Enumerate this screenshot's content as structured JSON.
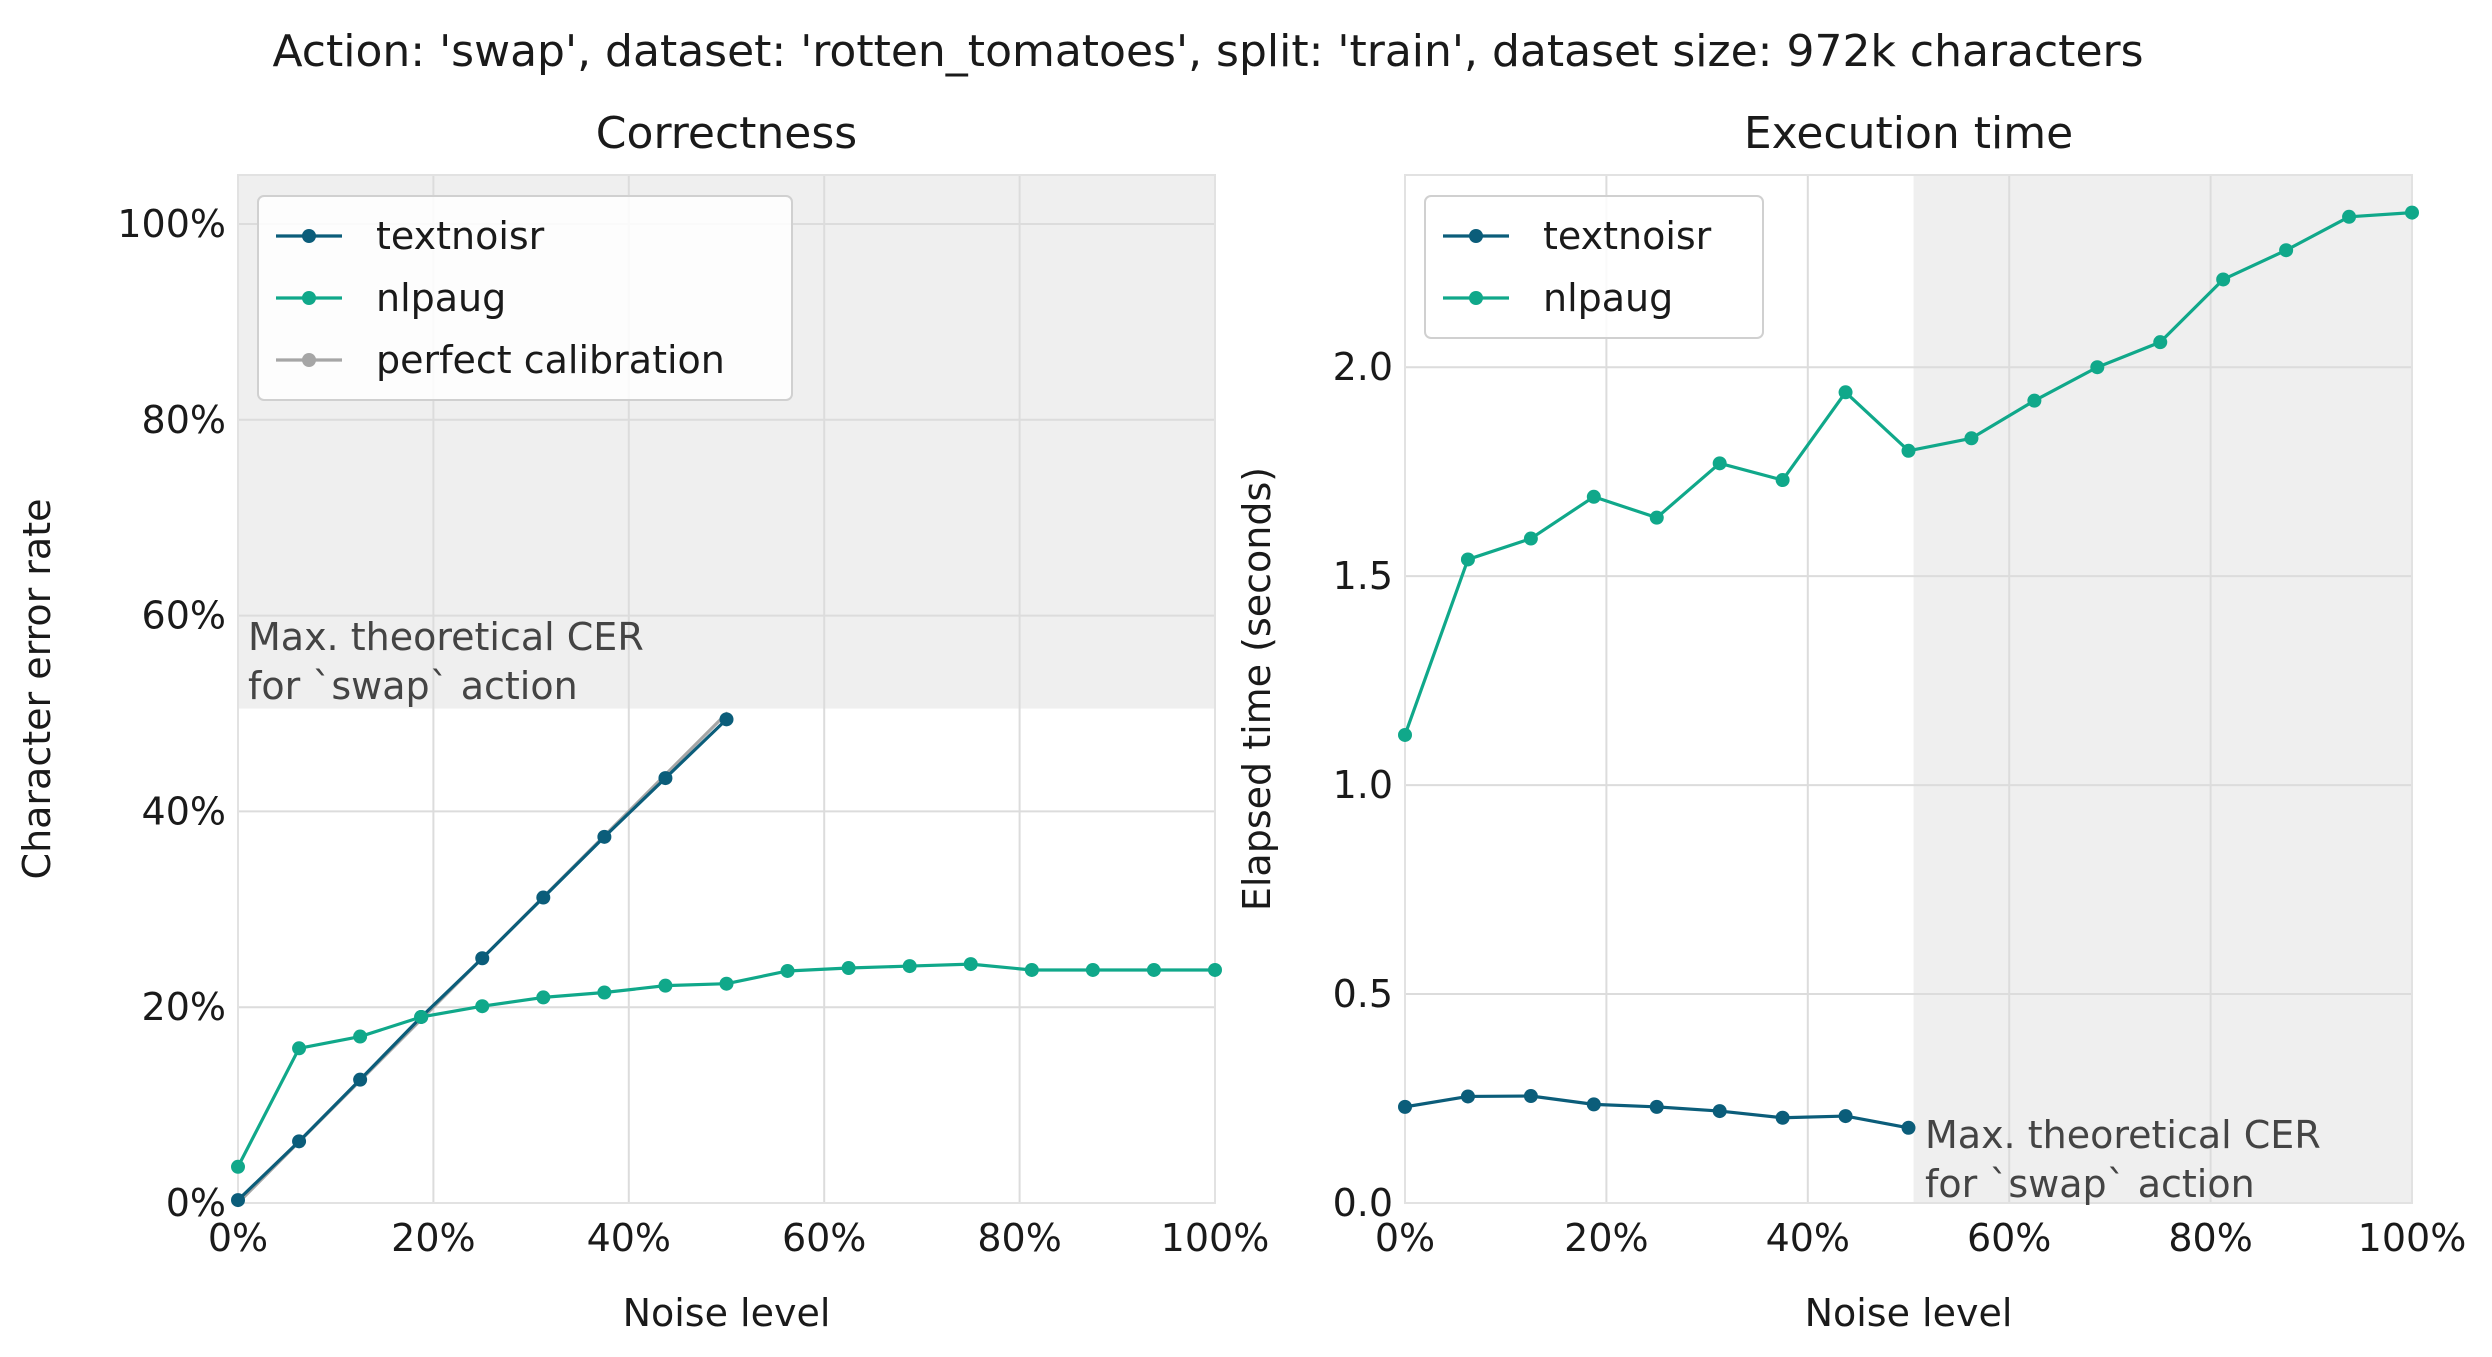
{
  "suptitle": "Action: 'swap', dataset: 'rotten_tomatoes', split: 'train', dataset size: 972k characters",
  "colors": {
    "textnoisr": "#0b5d7a",
    "nlpaug": "#10a88a",
    "perfect_calibration": "#a6a6a6",
    "shade": "#efefef",
    "grid": "#dcdcdc",
    "spine": "#e2e2e2"
  },
  "chart_data": [
    {
      "type": "line",
      "title": "Correctness",
      "xlabel": "Noise level",
      "ylabel": "Character error rate",
      "xlim": [
        0,
        1
      ],
      "ylim": [
        0,
        1.05
      ],
      "xticks": [
        0,
        0.2,
        0.4,
        0.6,
        0.8,
        1.0
      ],
      "xtick_labels": [
        "0%",
        "20%",
        "40%",
        "60%",
        "80%",
        "100%"
      ],
      "yticks": [
        0,
        0.2,
        0.4,
        0.6,
        0.8,
        1.0
      ],
      "ytick_labels": [
        "0%",
        "20%",
        "40%",
        "60%",
        "80%",
        "100%"
      ],
      "grid": true,
      "legend_position": "top-left",
      "shaded_region": {
        "axis": "y",
        "from": 0.505,
        "to": 1.05
      },
      "annotation": {
        "lines": [
          "Max. theoretical CER",
          "for `swap` action"
        ]
      },
      "series": [
        {
          "name": "textnoisr",
          "x": [
            0,
            0.0625,
            0.125,
            0.1875,
            0.25,
            0.3125,
            0.375,
            0.4375,
            0.5
          ],
          "y": [
            0.003,
            0.063,
            0.126,
            0.19,
            0.25,
            0.312,
            0.374,
            0.434,
            0.494
          ]
        },
        {
          "name": "nlpaug",
          "x": [
            0,
            0.0625,
            0.125,
            0.1875,
            0.25,
            0.3125,
            0.375,
            0.4375,
            0.5,
            0.5625,
            0.625,
            0.6875,
            0.75,
            0.8125,
            0.875,
            0.9375,
            1.0
          ],
          "y": [
            0.037,
            0.158,
            0.17,
            0.19,
            0.201,
            0.21,
            0.215,
            0.222,
            0.224,
            0.237,
            0.24,
            0.242,
            0.244,
            0.238,
            0.238,
            0.238,
            0.238
          ]
        },
        {
          "name": "perfect calibration",
          "x": [
            0,
            0.5
          ],
          "y": [
            0,
            0.5
          ]
        }
      ]
    },
    {
      "type": "line",
      "title": "Execution time",
      "xlabel": "Noise level",
      "ylabel": "Elapsed time (seconds)",
      "xlim": [
        0,
        1
      ],
      "ylim": [
        0,
        2.46
      ],
      "xticks": [
        0,
        0.2,
        0.4,
        0.6,
        0.8,
        1.0
      ],
      "xtick_labels": [
        "0%",
        "20%",
        "40%",
        "60%",
        "80%",
        "100%"
      ],
      "yticks": [
        0,
        0.5,
        1.0,
        1.5,
        2.0
      ],
      "ytick_labels": [
        "0.0",
        "0.5",
        "1.0",
        "1.5",
        "2.0"
      ],
      "grid": true,
      "legend_position": "top-left",
      "shaded_region": {
        "axis": "x",
        "from": 0.505,
        "to": 1.0
      },
      "annotation": {
        "lines": [
          "Max. theoretical CER",
          "for `swap` action"
        ]
      },
      "series": [
        {
          "name": "textnoisr",
          "x": [
            0,
            0.0625,
            0.125,
            0.1875,
            0.25,
            0.3125,
            0.375,
            0.4375,
            0.5
          ],
          "y": [
            0.23,
            0.255,
            0.256,
            0.236,
            0.23,
            0.22,
            0.204,
            0.208,
            0.18
          ]
        },
        {
          "name": "nlpaug",
          "x": [
            0,
            0.0625,
            0.125,
            0.1875,
            0.25,
            0.3125,
            0.375,
            0.4375,
            0.5,
            0.5625,
            0.625,
            0.6875,
            0.75,
            0.8125,
            0.875,
            0.9375,
            1.0
          ],
          "y": [
            1.12,
            1.54,
            1.59,
            1.69,
            1.64,
            1.77,
            1.73,
            1.94,
            1.8,
            1.83,
            1.92,
            2.0,
            2.06,
            2.21,
            2.28,
            2.36,
            2.37
          ]
        }
      ]
    }
  ]
}
